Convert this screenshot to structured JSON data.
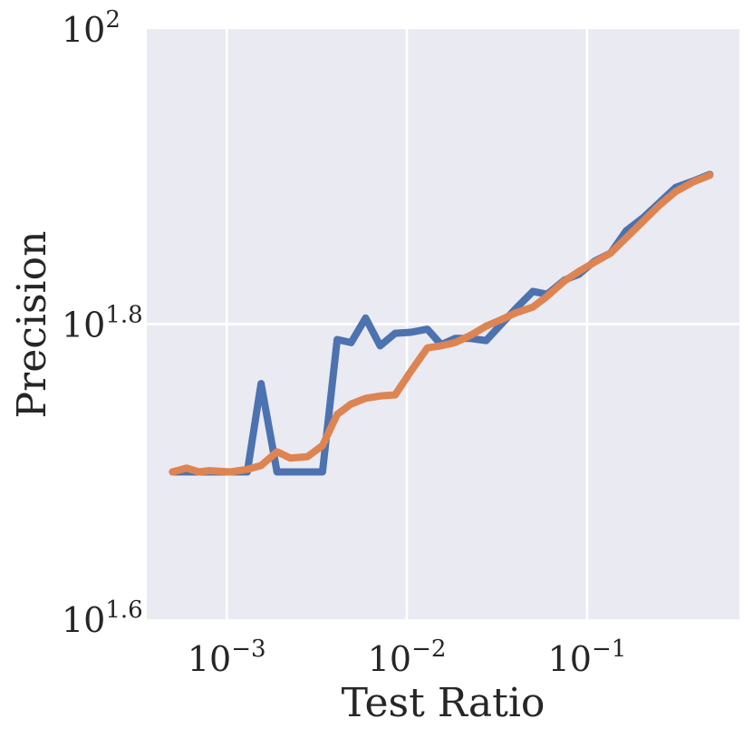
{
  "chart_data": {
    "type": "line",
    "title": "",
    "xlabel": "Test Ratio",
    "ylabel": "Precision",
    "xscale": "log",
    "yscale": "log",
    "xlim": [
      0.00036,
      0.7
    ],
    "ylim": [
      39.81,
      100
    ],
    "grid": true,
    "background_color": "#eaeaf2",
    "x_ticks": [
      {
        "value": 0.001,
        "base": "10",
        "exp": "−3"
      },
      {
        "value": 0.01,
        "base": "10",
        "exp": "−2"
      },
      {
        "value": 0.1,
        "base": "10",
        "exp": "−1"
      }
    ],
    "y_ticks": [
      {
        "value": 39.81,
        "base": "10",
        "exp": "1.6"
      },
      {
        "value": 63.1,
        "base": "10",
        "exp": "1.8"
      },
      {
        "value": 100,
        "base": "10",
        "exp": "2"
      }
    ],
    "x": [
      0.0005,
      0.0006,
      0.0007,
      0.0008,
      0.00105,
      0.0013,
      0.00155,
      0.0019,
      0.00225,
      0.0028,
      0.0034,
      0.0041,
      0.0049,
      0.0059,
      0.0071,
      0.0086,
      0.0105,
      0.013,
      0.0155,
      0.0185,
      0.0225,
      0.0275,
      0.033,
      0.04,
      0.05,
      0.06,
      0.075,
      0.09,
      0.11,
      0.135,
      0.165,
      0.205,
      0.25,
      0.31,
      0.39,
      0.48
    ],
    "series": [
      {
        "color": "#4c72b0",
        "values": [
          50.1,
          50.1,
          50.1,
          50.1,
          50.1,
          50.1,
          57.5,
          50.1,
          50.1,
          50.1,
          50.1,
          61.6,
          61.3,
          63.7,
          61.0,
          62.2,
          62.3,
          62.6,
          61.1,
          61.7,
          61.7,
          61.5,
          63.0,
          64.6,
          66.4,
          66.1,
          67.6,
          68.2,
          69.6,
          70.5,
          73.0,
          74.5,
          76.2,
          78.1,
          78.9,
          79.7
        ]
      },
      {
        "color": "#dd8452",
        "values": [
          50.1,
          50.4,
          50.1,
          50.2,
          50.1,
          50.3,
          50.6,
          51.7,
          51.2,
          51.3,
          52.2,
          54.8,
          55.7,
          56.2,
          56.4,
          56.5,
          58.6,
          60.8,
          61.0,
          61.3,
          62.0,
          62.9,
          63.5,
          64.2,
          64.8,
          65.9,
          67.5,
          68.5,
          69.5,
          70.5,
          72.2,
          74.1,
          75.9,
          77.6,
          78.8,
          79.6
        ]
      }
    ]
  }
}
